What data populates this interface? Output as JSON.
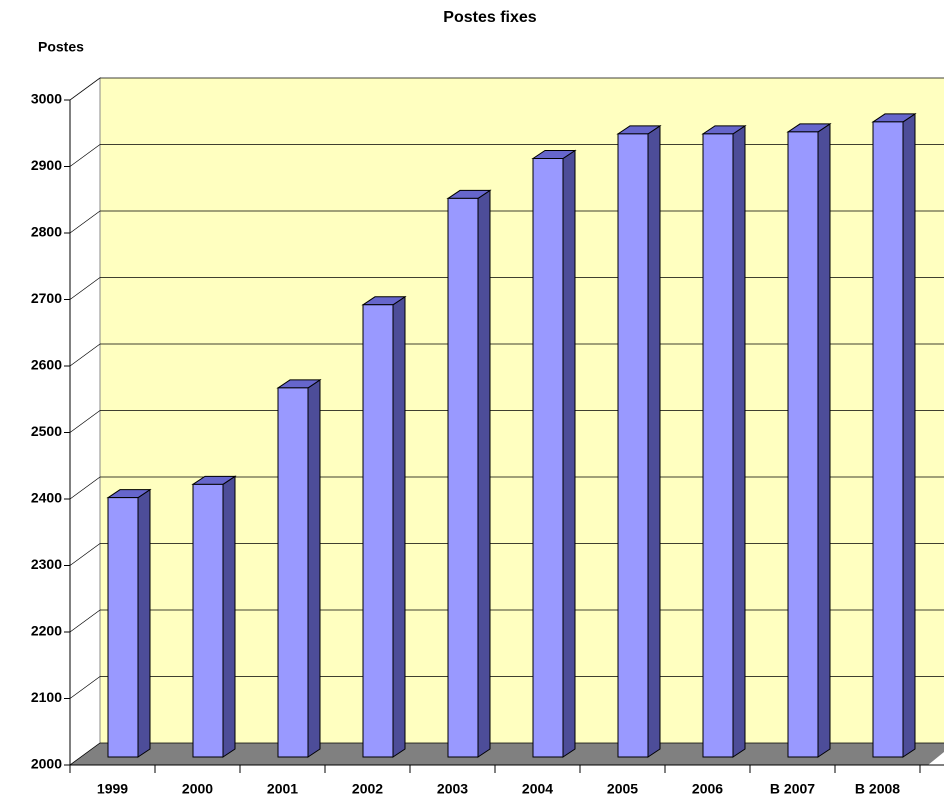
{
  "chart_data": {
    "type": "bar",
    "title": "Postes fixes",
    "y_label": "Postes",
    "categories": [
      "1999",
      "2000",
      "2001",
      "2002",
      "2003",
      "2004",
      "2005",
      "2006",
      "B 2007",
      "B 2008"
    ],
    "values": [
      2390,
      2410,
      2555,
      2680,
      2840,
      2900,
      2937,
      2937,
      2940,
      2955
    ],
    "color": "#9999ff",
    "ylim": [
      2000,
      3000
    ],
    "yticks": [
      2000,
      2100,
      2200,
      2300,
      2400,
      2500,
      2600,
      2700,
      2800,
      2900,
      3000
    ],
    "grid": true
  }
}
